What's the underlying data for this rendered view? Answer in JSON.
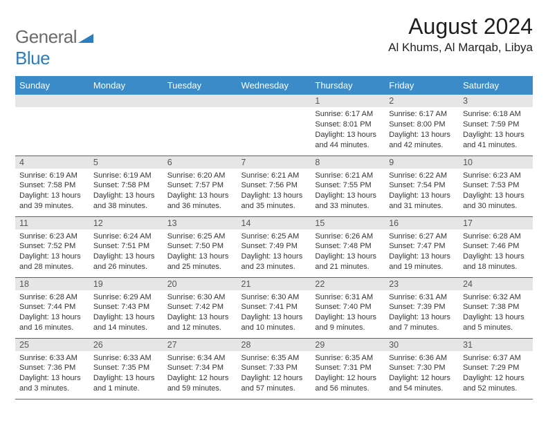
{
  "logo": {
    "word1": "General",
    "word2": "Blue"
  },
  "title": "August 2024",
  "subtitle": "Al Khums, Al Marqab, Libya",
  "header_bg": "#3b8bc8",
  "daynum_bg": "#e6e6e6",
  "row_border": "#3b6a94",
  "weekdays": [
    "Sunday",
    "Monday",
    "Tuesday",
    "Wednesday",
    "Thursday",
    "Friday",
    "Saturday"
  ],
  "weeks": [
    [
      null,
      null,
      null,
      null,
      {
        "n": "1",
        "sr": "6:17 AM",
        "ss": "8:01 PM",
        "dl": "13 hours and 44 minutes."
      },
      {
        "n": "2",
        "sr": "6:17 AM",
        "ss": "8:00 PM",
        "dl": "13 hours and 42 minutes."
      },
      {
        "n": "3",
        "sr": "6:18 AM",
        "ss": "7:59 PM",
        "dl": "13 hours and 41 minutes."
      }
    ],
    [
      {
        "n": "4",
        "sr": "6:19 AM",
        "ss": "7:58 PM",
        "dl": "13 hours and 39 minutes."
      },
      {
        "n": "5",
        "sr": "6:19 AM",
        "ss": "7:58 PM",
        "dl": "13 hours and 38 minutes."
      },
      {
        "n": "6",
        "sr": "6:20 AM",
        "ss": "7:57 PM",
        "dl": "13 hours and 36 minutes."
      },
      {
        "n": "7",
        "sr": "6:21 AM",
        "ss": "7:56 PM",
        "dl": "13 hours and 35 minutes."
      },
      {
        "n": "8",
        "sr": "6:21 AM",
        "ss": "7:55 PM",
        "dl": "13 hours and 33 minutes."
      },
      {
        "n": "9",
        "sr": "6:22 AM",
        "ss": "7:54 PM",
        "dl": "13 hours and 31 minutes."
      },
      {
        "n": "10",
        "sr": "6:23 AM",
        "ss": "7:53 PM",
        "dl": "13 hours and 30 minutes."
      }
    ],
    [
      {
        "n": "11",
        "sr": "6:23 AM",
        "ss": "7:52 PM",
        "dl": "13 hours and 28 minutes."
      },
      {
        "n": "12",
        "sr": "6:24 AM",
        "ss": "7:51 PM",
        "dl": "13 hours and 26 minutes."
      },
      {
        "n": "13",
        "sr": "6:25 AM",
        "ss": "7:50 PM",
        "dl": "13 hours and 25 minutes."
      },
      {
        "n": "14",
        "sr": "6:25 AM",
        "ss": "7:49 PM",
        "dl": "13 hours and 23 minutes."
      },
      {
        "n": "15",
        "sr": "6:26 AM",
        "ss": "7:48 PM",
        "dl": "13 hours and 21 minutes."
      },
      {
        "n": "16",
        "sr": "6:27 AM",
        "ss": "7:47 PM",
        "dl": "13 hours and 19 minutes."
      },
      {
        "n": "17",
        "sr": "6:28 AM",
        "ss": "7:46 PM",
        "dl": "13 hours and 18 minutes."
      }
    ],
    [
      {
        "n": "18",
        "sr": "6:28 AM",
        "ss": "7:44 PM",
        "dl": "13 hours and 16 minutes."
      },
      {
        "n": "19",
        "sr": "6:29 AM",
        "ss": "7:43 PM",
        "dl": "13 hours and 14 minutes."
      },
      {
        "n": "20",
        "sr": "6:30 AM",
        "ss": "7:42 PM",
        "dl": "13 hours and 12 minutes."
      },
      {
        "n": "21",
        "sr": "6:30 AM",
        "ss": "7:41 PM",
        "dl": "13 hours and 10 minutes."
      },
      {
        "n": "22",
        "sr": "6:31 AM",
        "ss": "7:40 PM",
        "dl": "13 hours and 9 minutes."
      },
      {
        "n": "23",
        "sr": "6:31 AM",
        "ss": "7:39 PM",
        "dl": "13 hours and 7 minutes."
      },
      {
        "n": "24",
        "sr": "6:32 AM",
        "ss": "7:38 PM",
        "dl": "13 hours and 5 minutes."
      }
    ],
    [
      {
        "n": "25",
        "sr": "6:33 AM",
        "ss": "7:36 PM",
        "dl": "13 hours and 3 minutes."
      },
      {
        "n": "26",
        "sr": "6:33 AM",
        "ss": "7:35 PM",
        "dl": "13 hours and 1 minute."
      },
      {
        "n": "27",
        "sr": "6:34 AM",
        "ss": "7:34 PM",
        "dl": "12 hours and 59 minutes."
      },
      {
        "n": "28",
        "sr": "6:35 AM",
        "ss": "7:33 PM",
        "dl": "12 hours and 57 minutes."
      },
      {
        "n": "29",
        "sr": "6:35 AM",
        "ss": "7:31 PM",
        "dl": "12 hours and 56 minutes."
      },
      {
        "n": "30",
        "sr": "6:36 AM",
        "ss": "7:30 PM",
        "dl": "12 hours and 54 minutes."
      },
      {
        "n": "31",
        "sr": "6:37 AM",
        "ss": "7:29 PM",
        "dl": "12 hours and 52 minutes."
      }
    ]
  ],
  "labels": {
    "sunrise": "Sunrise:",
    "sunset": "Sunset:",
    "daylight": "Daylight:"
  }
}
